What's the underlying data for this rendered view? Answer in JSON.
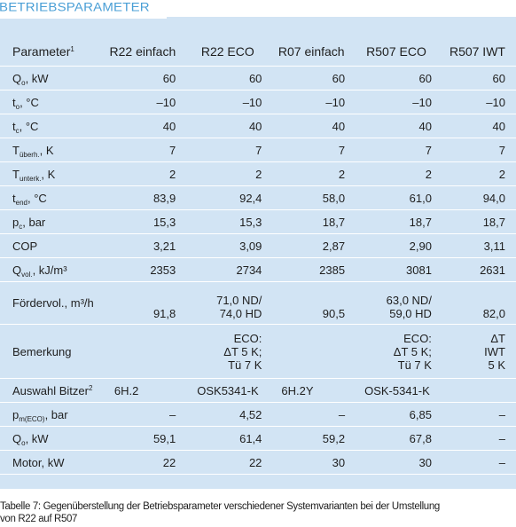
{
  "title": "BETRIEBSPARAMETER",
  "header": {
    "param_label": "Parameter",
    "param_note": "1",
    "columns": [
      "R22 einfach",
      "R22 ECO",
      "R07 einfach",
      "R507 ECO",
      "R507 IWT"
    ]
  },
  "rows": [
    {
      "label": "Q",
      "sub": "o",
      "unit": ", kW",
      "values": [
        "60",
        "60",
        "60",
        "60",
        "60"
      ]
    },
    {
      "label": "t",
      "sub": "o",
      "unit": ", °C",
      "values": [
        "–10",
        "–10",
        "–10",
        "–10",
        "–10"
      ]
    },
    {
      "label": "t",
      "sub": "c",
      "unit": ", °C",
      "values": [
        "40",
        "40",
        "40",
        "40",
        "40"
      ]
    },
    {
      "label": "T",
      "sub": "überh.",
      "unit": ", K",
      "values": [
        "7",
        "7",
        "7",
        "7",
        "7"
      ]
    },
    {
      "label": "T",
      "sub": "unterk.",
      "unit": ", K",
      "values": [
        "2",
        "2",
        "2",
        "2",
        "2"
      ]
    },
    {
      "label": "t",
      "sub": "end",
      "unit": ", °C",
      "values": [
        "83,9",
        "92,4",
        "58,0",
        "61,0",
        "94,0"
      ]
    },
    {
      "label": "p",
      "sub": "c",
      "unit": ", bar",
      "values": [
        "15,3",
        "15,3",
        "18,7",
        "18,7",
        "18,7"
      ]
    },
    {
      "label": "COP",
      "sub": "",
      "unit": "",
      "values": [
        "3,21",
        "3,09",
        "2,87",
        "2,90",
        "3,11"
      ]
    },
    {
      "label": "Q",
      "sub": "vol.",
      "unit": ", kJ/m³",
      "values": [
        "2353",
        "2734",
        "2385",
        "3081",
        "2631"
      ]
    }
  ],
  "foerder": {
    "label": "Fördervol., m³/h",
    "v1": "91,8",
    "v2_line1": "71,0 ND/",
    "v2_line2": "74,0 HD",
    "v3": "90,5",
    "v4_line1": "63,0 ND/",
    "v4_line2": "59,0 HD",
    "v5": "82,0"
  },
  "bemerkung": {
    "label": "Bemerkung",
    "eco": [
      "ECO:",
      "ΔT 5 K;",
      "Tü 7 K"
    ],
    "eco2": [
      "ECO:",
      "ΔT 5 K;",
      "Tü 7 K"
    ],
    "iwt": [
      "ΔT",
      "IWT",
      "5 K"
    ]
  },
  "auswahl": {
    "label": "Auswahl Bitzer",
    "note": "2",
    "values": [
      "6H.2",
      "OSK5341-K",
      "6H.2Y",
      "OSK-5341-K",
      ""
    ]
  },
  "rows_bottom": [
    {
      "label": "p",
      "sub": "m(ECO)",
      "unit": ", bar",
      "values": [
        "–",
        "4,52",
        "–",
        "6,85",
        "–"
      ]
    },
    {
      "label": "Q",
      "sub": "o",
      "unit": ", kW",
      "values": [
        "59,1",
        "61,4",
        "59,2",
        "67,8",
        "–"
      ]
    },
    {
      "label": "Motor, kW",
      "sub": "",
      "unit": "",
      "values": [
        "22",
        "22",
        "30",
        "30",
        "–"
      ]
    }
  ],
  "caption": {
    "line1": "Tabelle 7: Gegenüberstellung der Betriebsparameter verschiedener Systemvarianten bei der Umstellung",
    "line2": "von R22 auf R507"
  }
}
